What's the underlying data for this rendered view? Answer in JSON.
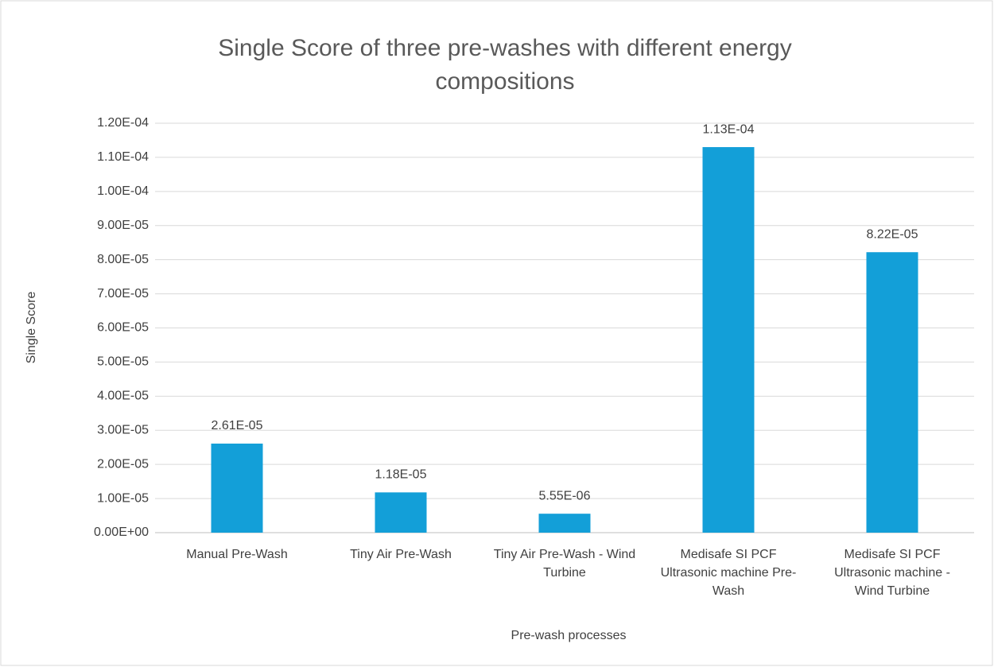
{
  "chart_data": {
    "type": "bar",
    "title": "Single Score of three pre-washes with different energy compositions",
    "x_label": "Pre-wash processes",
    "y_label": "Single Score",
    "categories": [
      "Manual Pre-Wash",
      "Tiny Air Pre-Wash",
      "Tiny Air Pre-Wash - Wind Turbine",
      "Medisafe SI PCF Ultrasonic machine Pre-Wash",
      "Medisafe SI PCF Ultrasonic machine - Wind Turbine"
    ],
    "values": [
      2.61e-05,
      1.18e-05,
      5.55e-06,
      0.000113,
      8.22e-05
    ],
    "value_labels": [
      "2.61E-05",
      "1.18E-05",
      "5.55E-06",
      "1.13E-04",
      "8.22E-05"
    ],
    "color": "#139fd8",
    "ylim": [
      0,
      0.00012
    ],
    "yticks": [
      {
        "value": 0,
        "label": "0.00E+00"
      },
      {
        "value": 1e-05,
        "label": "1.00E-05"
      },
      {
        "value": 2e-05,
        "label": "2.00E-05"
      },
      {
        "value": 3e-05,
        "label": "3.00E-05"
      },
      {
        "value": 4e-05,
        "label": "4.00E-05"
      },
      {
        "value": 5e-05,
        "label": "5.00E-05"
      },
      {
        "value": 6e-05,
        "label": "6.00E-05"
      },
      {
        "value": 7e-05,
        "label": "7.00E-05"
      },
      {
        "value": 8e-05,
        "label": "8.00E-05"
      },
      {
        "value": 9e-05,
        "label": "9.00E-05"
      },
      {
        "value": 0.0001,
        "label": "1.00E-04"
      },
      {
        "value": 0.00011,
        "label": "1.10E-04"
      },
      {
        "value": 0.00012,
        "label": "1.20E-04"
      }
    ],
    "grid": true
  }
}
